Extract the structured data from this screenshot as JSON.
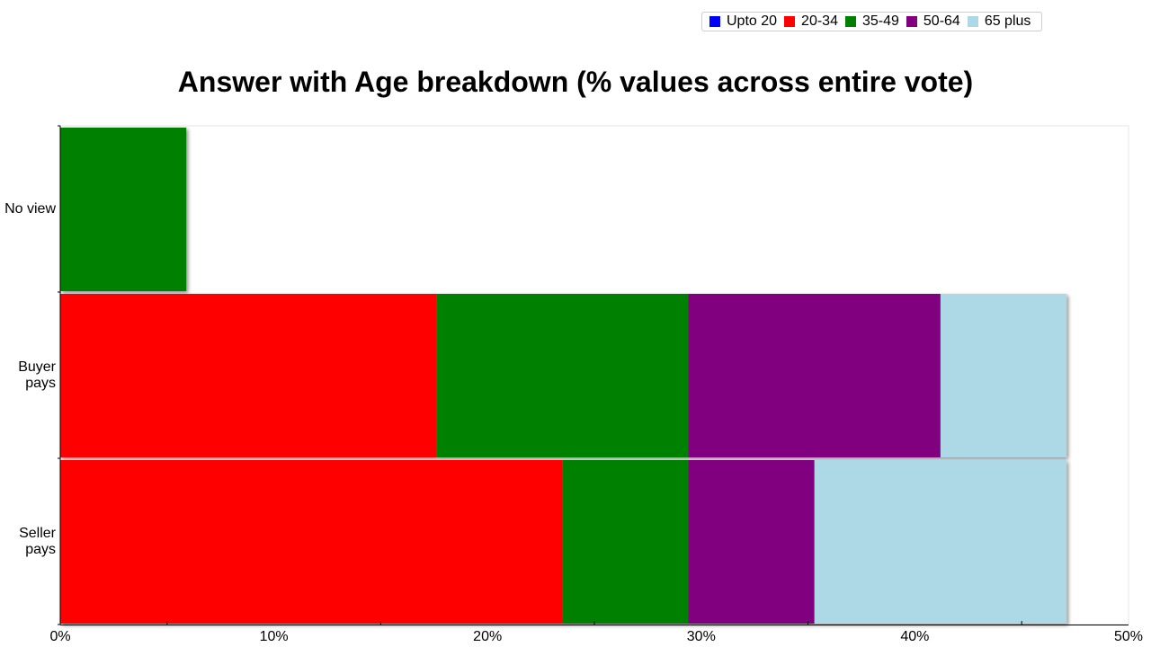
{
  "legend": {
    "items": [
      {
        "label": "Upto 20",
        "color": "#0000ff"
      },
      {
        "label": "20-34",
        "color": "#ff0000"
      },
      {
        "label": "35-49",
        "color": "#008000"
      },
      {
        "label": "50-64",
        "color": "#800080"
      },
      {
        "label": "65 plus",
        "color": "#add8e6"
      }
    ]
  },
  "chart_data": {
    "type": "bar",
    "orientation": "horizontal",
    "stacked": true,
    "title": "Answer with Age breakdown (% values across entire vote)",
    "categories": [
      "No view",
      "Buyer pays",
      "Seller pays"
    ],
    "category_lines": [
      [
        "No view"
      ],
      [
        "Buyer",
        "pays"
      ],
      [
        "Seller",
        "pays"
      ]
    ],
    "series": [
      {
        "name": "Upto 20",
        "color": "#0000ff",
        "values": [
          0,
          0,
          0
        ]
      },
      {
        "name": "20-34",
        "color": "#ff0000",
        "values": [
          0,
          17.6,
          23.5
        ]
      },
      {
        "name": "35-49",
        "color": "#008000",
        "values": [
          5.9,
          11.8,
          5.9
        ]
      },
      {
        "name": "50-64",
        "color": "#800080",
        "values": [
          0,
          11.8,
          5.9
        ]
      },
      {
        "name": "65 plus",
        "color": "#add8e6",
        "values": [
          0,
          5.9,
          11.8
        ]
      }
    ],
    "xlim": [
      0,
      50
    ],
    "x_ticks": [
      "0%",
      "10%",
      "20%",
      "30%",
      "40%",
      "50%"
    ],
    "legend_position": "top-right",
    "grid": false
  }
}
